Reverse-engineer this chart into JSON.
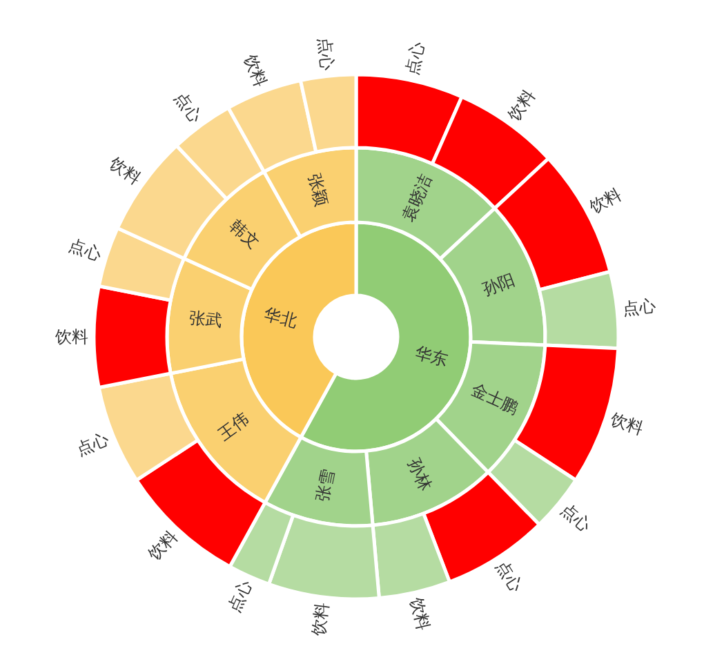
{
  "chart_data": [
    {
      "type": "donut",
      "categories": [
        "华东",
        "华北"
      ],
      "values": [
        58.0,
        42.0
      ],
      "colors": [
        "#91cc75",
        "#fac858"
      ]
    },
    {
      "type": "donut",
      "categories": [
        "袁晓洁",
        "孙阳",
        "金士鹏",
        "孙林",
        "张雪",
        "王伟",
        "张武",
        "韩文",
        "张颖"
      ],
      "values": [
        13.1,
        12.6,
        12.0,
        10.9,
        9.4,
        13.9,
        9.9,
        10.1,
        8.1
      ],
      "colors": [
        "#a1d38b",
        "#a1d38b",
        "#a1d38b",
        "#a1d38b",
        "#a1d38b",
        "#fad070",
        "#fad070",
        "#fad070",
        "#fad070"
      ]
    },
    {
      "type": "donut",
      "categories": [
        "点心",
        "饮料",
        "饮料",
        "点心",
        "饮料",
        "点心",
        "点心",
        "饮料",
        "饮料",
        "点心",
        "饮料",
        "点心",
        "饮料",
        "点心",
        "饮料",
        "点心",
        "饮料",
        "点心"
      ],
      "values": [
        6.6,
        6.5,
        7.9,
        4.7,
        8.5,
        3.5,
        6.5,
        4.4,
        6.8,
        2.6,
        7.8,
        6.1,
        6.2,
        3.7,
        6.2,
        3.9,
        4.7,
        3.4
      ],
      "colors": [
        "#ff0000",
        "#ff0000",
        "#ff0000",
        "#b5dca2",
        "#ff0000",
        "#b5dca2",
        "#ff0000",
        "#b5dca2",
        "#b5dca2",
        "#b5dca2",
        "#ff0000",
        "#fbd88e",
        "#ff0000",
        "#fbd88e",
        "#fbd88e",
        "#fbd88e",
        "#fbd88e",
        "#fbd88e"
      ]
    }
  ]
}
